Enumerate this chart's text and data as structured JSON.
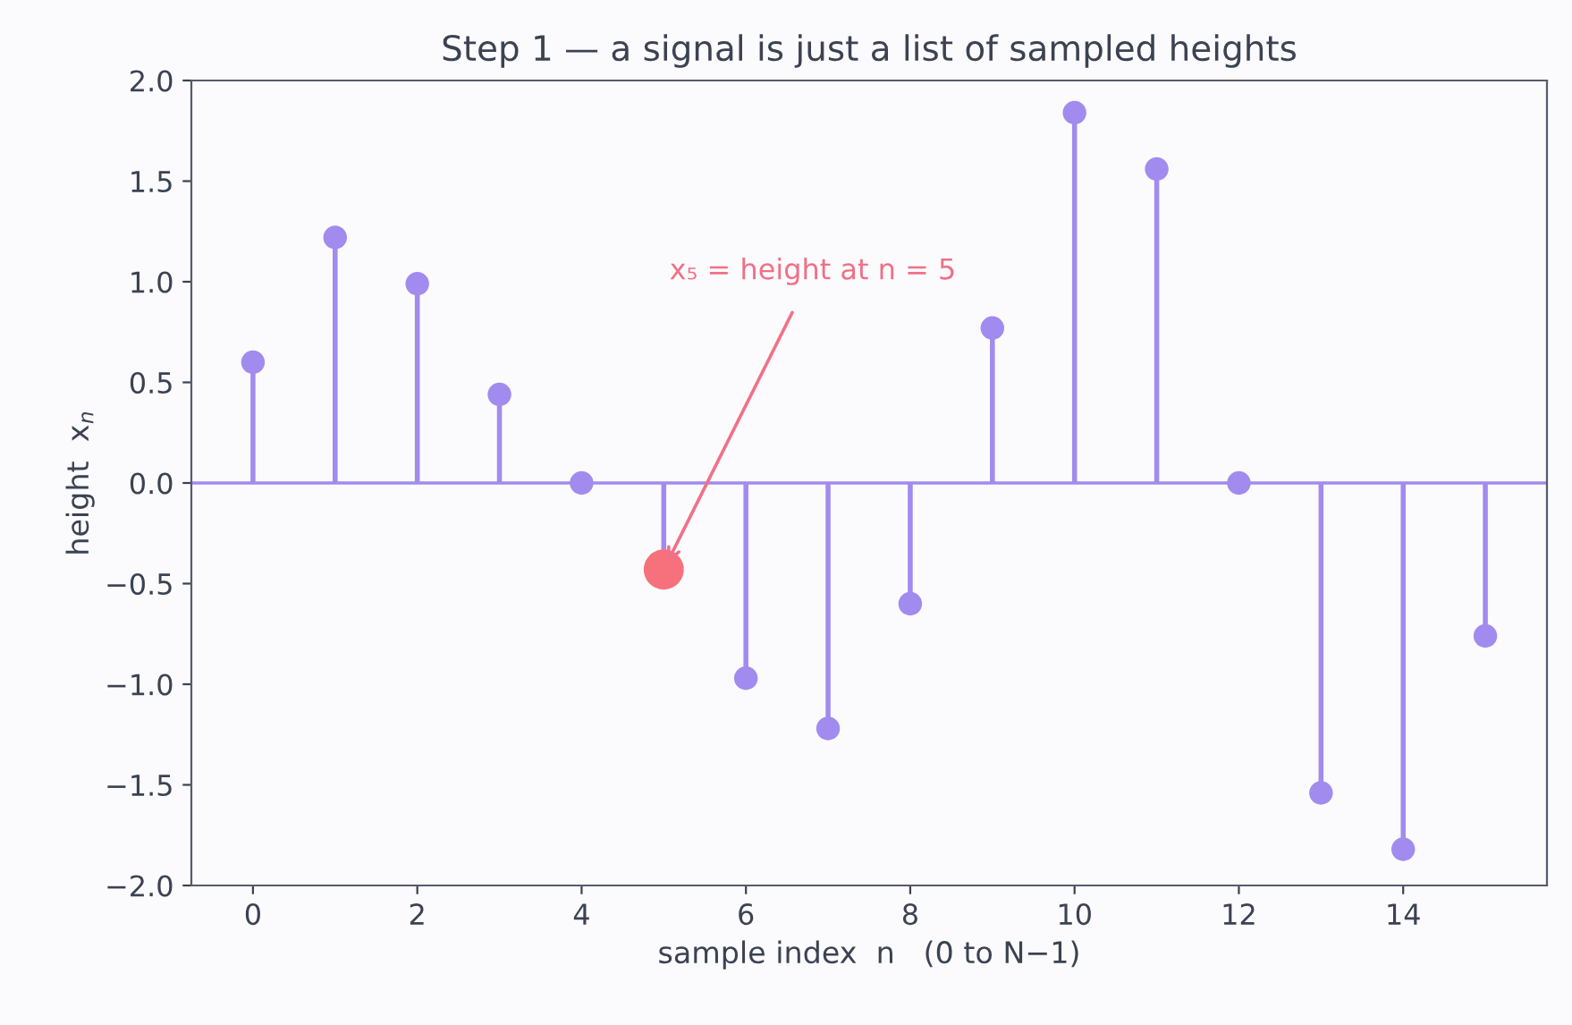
{
  "chart_data": {
    "type": "lollipop",
    "title": "Step 1 — a signal is just a list of sampled heights",
    "xlabel": "sample index  n   (0 to N−1)",
    "ylabel": "height  x$_{n}$",
    "series": [
      {
        "color": "#a28bee",
        "x": [
          0,
          1,
          2,
          3,
          4,
          5,
          6,
          7,
          8,
          9,
          10,
          11,
          12,
          13,
          14,
          15
        ],
        "values": [
          0.6,
          1.22,
          0.99,
          0.44,
          0.0,
          -0.43,
          -0.97,
          -1.22,
          -0.6,
          0.77,
          1.84,
          1.56,
          0.0,
          -1.54,
          -1.82,
          -0.76
        ],
        "sizes": [
          0.35,
          0.35,
          0.35,
          0.35,
          0.35,
          1,
          0.35,
          0.35,
          0.35,
          0.35,
          0.35,
          0.35,
          0.35,
          0.35,
          0.35,
          0.35
        ],
        "colors": [
          "#a28bee",
          "#a28bee",
          "#a28bee",
          "#a28bee",
          "#a28bee",
          "#f7717d",
          "#a28bee",
          "#a28bee",
          "#a28bee",
          "#a28bee",
          "#a28bee",
          "#a28bee",
          "#a28bee",
          "#a28bee",
          "#a28bee",
          "#a28bee"
        ]
      }
    ],
    "ref_lines": [
      {
        "axis": "y",
        "value": 0,
        "color": "#a28bee"
      }
    ],
    "annotations": [
      {
        "text": "x₅ = height at n = 5",
        "x": 5,
        "y": -0.43
      }
    ],
    "xlim": [
      -0.75,
      15.75
    ],
    "xticks": [
      0,
      2,
      4,
      6,
      8,
      10,
      12,
      14
    ],
    "ylim": [
      -2.0,
      2.0
    ],
    "yticks": [
      {
        "value": -2.0,
        "label": "−2.0"
      },
      {
        "value": -1.5,
        "label": "−1.5"
      },
      {
        "value": -1.0,
        "label": "−1.0"
      },
      {
        "value": -0.5,
        "label": "−0.5"
      },
      {
        "value": 0.0,
        "label": "0.0"
      },
      {
        "value": 0.5,
        "label": "0.5"
      },
      {
        "value": 1.0,
        "label": "1.0"
      },
      {
        "value": 1.5,
        "label": "1.5"
      },
      {
        "value": 2.0,
        "label": "2.0"
      }
    ],
    "grid": false,
    "legend": false,
    "marker": "circle"
  }
}
